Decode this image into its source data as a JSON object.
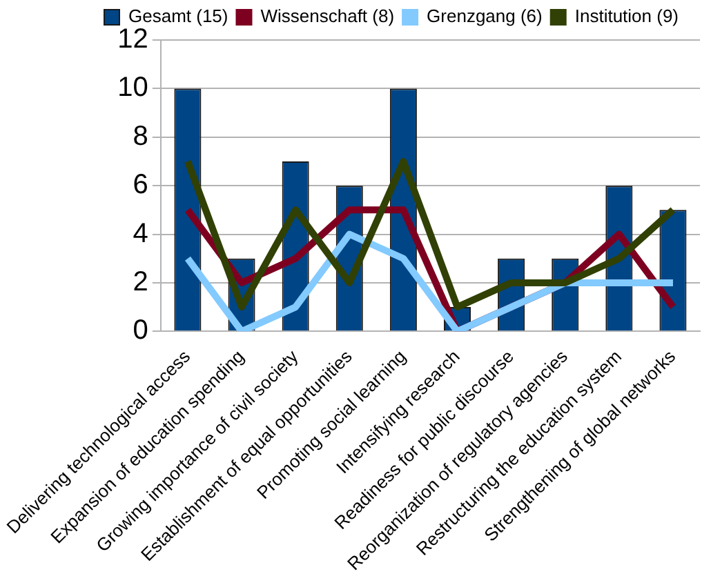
{
  "chart_data": {
    "type": "bar",
    "categories": [
      "Delivering technological access",
      "Expansion of education spending",
      "Growing importance of civil society",
      "Establishment of equal opportunities",
      "Promoting social learning",
      "Intensifying research",
      "Readiness for public discourse",
      "Reorganization of regulatory agencies",
      "Restructuring the education system",
      "Strengthening of global networks"
    ],
    "series": [
      {
        "name": "Gesamt (15)",
        "color": "#004586",
        "values": [
          10,
          3,
          7,
          6,
          10,
          1,
          3,
          3,
          6,
          5
        ]
      },
      {
        "name": "Wissenschaft (8)",
        "type": "line",
        "color": "#7e0021",
        "values": [
          5,
          2,
          3,
          5,
          5,
          0,
          null,
          2,
          4,
          1
        ]
      },
      {
        "name": "Grenzgang (6)",
        "type": "line",
        "color": "#83caff",
        "values": [
          3,
          0,
          1,
          4,
          3,
          0,
          1,
          2,
          2,
          2
        ]
      },
      {
        "name": "Institution (9)",
        "type": "line",
        "color": "#314004",
        "values": [
          7,
          1,
          5,
          2,
          7,
          1,
          2,
          2,
          3,
          5
        ]
      }
    ],
    "ylim": [
      0,
      12
    ],
    "yticks": [
      0,
      2,
      4,
      6,
      8,
      10,
      12
    ],
    "grid": "y",
    "legend": "top",
    "marker": "none"
  }
}
